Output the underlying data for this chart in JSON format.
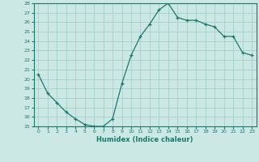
{
  "x": [
    0,
    1,
    2,
    3,
    4,
    5,
    6,
    7,
    8,
    9,
    10,
    11,
    12,
    13,
    14,
    15,
    16,
    17,
    18,
    19,
    20,
    21,
    22,
    23
  ],
  "y": [
    20.5,
    18.5,
    17.5,
    16.5,
    15.8,
    15.2,
    15.0,
    15.0,
    15.8,
    19.5,
    22.5,
    24.5,
    25.8,
    27.3,
    28.0,
    26.5,
    26.2,
    26.2,
    25.8,
    25.5,
    24.5,
    24.5,
    22.8,
    22.5
  ],
  "xlabel": "Humidex (Indice chaleur)",
  "ylim": [
    15,
    28
  ],
  "xlim": [
    -0.5,
    23.5
  ],
  "yticks": [
    15,
    16,
    17,
    18,
    19,
    20,
    21,
    22,
    23,
    24,
    25,
    26,
    27,
    28
  ],
  "xticks": [
    0,
    1,
    2,
    3,
    4,
    5,
    6,
    7,
    8,
    9,
    10,
    11,
    12,
    13,
    14,
    15,
    16,
    17,
    18,
    19,
    20,
    21,
    22,
    23
  ],
  "line_color": "#1a7a6e",
  "bg_color": "#cce8e4",
  "grid_color": "#9eccc7"
}
